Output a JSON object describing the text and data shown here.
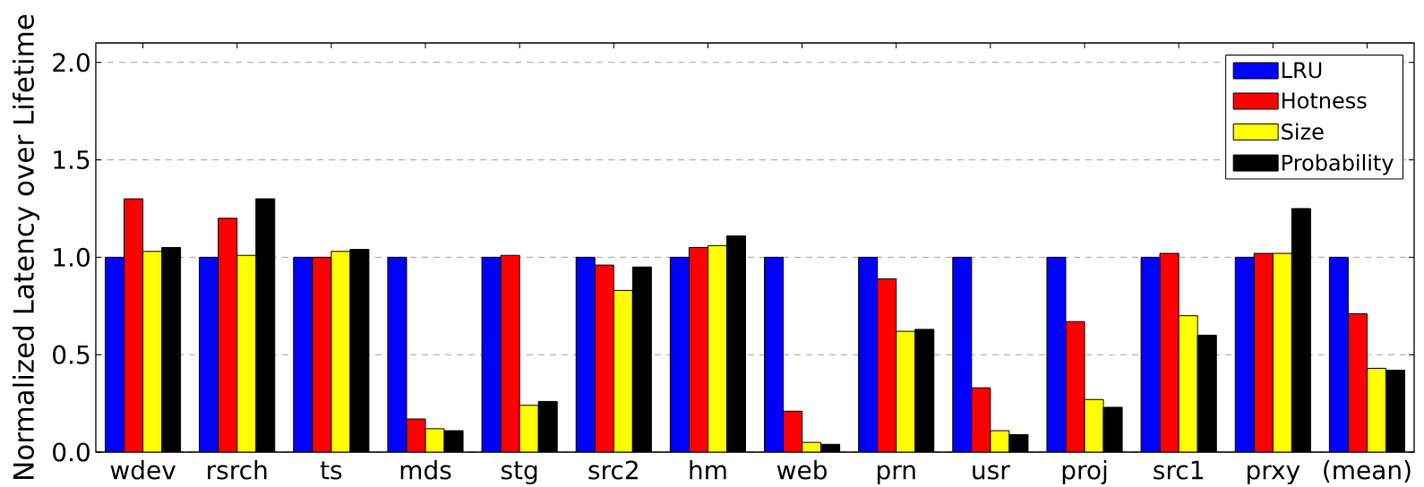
{
  "chart_data": {
    "type": "bar",
    "ylabel": "Normalized Latency over Lifetime",
    "categories": [
      "wdev",
      "rsrch",
      "ts",
      "mds",
      "stg",
      "src2",
      "hm",
      "web",
      "prn",
      "usr",
      "proj",
      "src1",
      "prxy",
      "(mean)"
    ],
    "series": [
      {
        "name": "LRU",
        "color": "#0000ff",
        "values": [
          1,
          1,
          1,
          1,
          1,
          1,
          1,
          1,
          1,
          1,
          1,
          1,
          1,
          1
        ]
      },
      {
        "name": "Hotness",
        "color": "#ff0000",
        "values": [
          1.3,
          1.2,
          1.0,
          0.17,
          1.01,
          0.96,
          1.05,
          0.21,
          0.89,
          0.33,
          0.67,
          1.02,
          1.02,
          0.71
        ]
      },
      {
        "name": "Size",
        "color": "#ffff00",
        "values": [
          1.03,
          1.01,
          1.03,
          0.12,
          0.24,
          0.83,
          1.06,
          0.05,
          0.62,
          0.11,
          0.27,
          0.7,
          1.02,
          0.43
        ]
      },
      {
        "name": "Probability",
        "color": "#000000",
        "values": [
          1.05,
          1.3,
          1.04,
          0.11,
          0.26,
          0.95,
          1.11,
          0.04,
          0.63,
          0.09,
          0.23,
          0.6,
          1.25,
          0.42
        ]
      }
    ],
    "ylim": [
      0,
      2.1
    ],
    "yticks": [
      {
        "value": 0,
        "label": "0.0"
      },
      0.5,
      {
        "value": 1,
        "label": "1.0"
      },
      1.5,
      {
        "value": 2,
        "label": "2.0"
      }
    ],
    "grid": "y",
    "legend": "top right"
  }
}
